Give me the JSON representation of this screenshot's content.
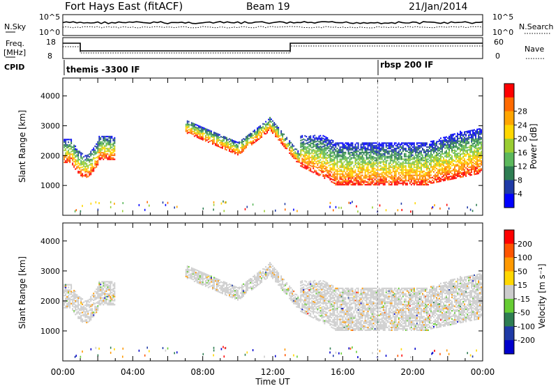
{
  "header": {
    "station": "Fort Hays East (fitACF)",
    "beam": "Beam 19",
    "date": "21/Jan/2014"
  },
  "strip": {
    "nsky_label": "N.Sky",
    "nsky_ticks": [
      "10^5",
      "10^0"
    ],
    "nsearch_label": "N.Search",
    "nsearch_ticks": [
      "10^5",
      "10^0"
    ],
    "freq_label": "Freq.",
    "freq_unit": "[MHz]",
    "freq_ticks": [
      18,
      8
    ],
    "nave_label": "Nave",
    "nave_ticks": [
      60,
      0
    ],
    "cpid_label": "CPID",
    "cpid_segments": [
      {
        "label": "themis -3300 IF",
        "start_hour": 0
      },
      {
        "label": "rbsp 200 IF",
        "start_hour": 18
      }
    ]
  },
  "chart_data": [
    {
      "type": "heatmap",
      "name": "power",
      "ylabel": "Slant Range [km]",
      "ylim": [
        0,
        4600
      ],
      "yticks": [
        1000,
        2000,
        3000,
        4000
      ],
      "xlim": [
        0,
        24
      ],
      "colorbar": {
        "label": "Power [dB]",
        "ticks": [
          4,
          8,
          12,
          16,
          20,
          24,
          28
        ],
        "colors": [
          "#0000ff",
          "#1f3aa6",
          "#2e7d52",
          "#5cb85c",
          "#9acd32",
          "#ffd700",
          "#ffa500",
          "#ff6a00",
          "#ff0000"
        ]
      }
    },
    {
      "type": "heatmap",
      "name": "velocity",
      "ylabel": "Slant Range [km]",
      "ylim": [
        0,
        4600
      ],
      "yticks": [
        1000,
        2000,
        3000,
        4000
      ],
      "xlim": [
        0,
        24
      ],
      "colorbar": {
        "label": "Velocity [m s⁻¹]",
        "ticks": [
          200,
          100,
          50,
          15,
          -15,
          -50,
          -100,
          -200
        ],
        "colors": [
          "#0000cc",
          "#1f3aa6",
          "#2e7d52",
          "#66cc33",
          "#cccccc",
          "#ffd700",
          "#ff9900",
          "#ff5500",
          "#ff0000"
        ]
      }
    }
  ],
  "xaxis": {
    "label": "Time UT",
    "ticks": [
      "00:00",
      "04:00",
      "08:00",
      "12:00",
      "16:00",
      "20:00",
      "00:00"
    ]
  }
}
